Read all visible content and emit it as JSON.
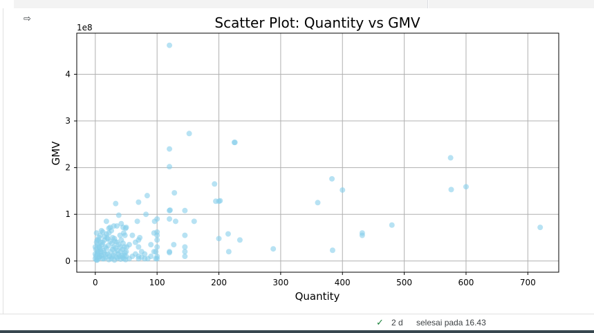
{
  "output_icon": "output-arrow-icon",
  "status": {
    "check_icon": "check-icon",
    "elapsed": "2 d",
    "finished": "selesai pada 16.43"
  },
  "chart_data": {
    "type": "scatter",
    "title": "Scatter Plot: Quantity vs GMV",
    "xlabel": "Quantity",
    "ylabel": "GMV",
    "y_offset_label": "1e8",
    "xlim": [
      -30,
      750
    ],
    "ylim": [
      -0.24,
      4.88
    ],
    "x_ticks": [
      0,
      100,
      200,
      300,
      400,
      500,
      600,
      700
    ],
    "y_ticks": [
      0,
      1,
      2,
      3,
      4
    ],
    "grid": true,
    "point_color": "#87ceeb",
    "series": [
      {
        "points": [
          [
            0,
            0.05
          ],
          [
            1,
            0.1
          ],
          [
            2,
            0.02
          ],
          [
            3,
            0.15
          ],
          [
            4,
            0.2
          ],
          [
            5,
            0.05
          ],
          [
            6,
            0.3
          ],
          [
            7,
            0.1
          ],
          [
            8,
            0.25
          ],
          [
            9,
            0.4
          ],
          [
            10,
            0.12
          ],
          [
            11,
            0.35
          ],
          [
            12,
            0.05
          ],
          [
            13,
            0.22
          ],
          [
            14,
            0.18
          ],
          [
            15,
            0.45
          ],
          [
            16,
            0.3
          ],
          [
            17,
            0.08
          ],
          [
            18,
            0.27
          ],
          [
            19,
            0.5
          ],
          [
            20,
            0.15
          ],
          [
            21,
            0.33
          ],
          [
            22,
            0.6
          ],
          [
            23,
            0.1
          ],
          [
            24,
            0.42
          ],
          [
            25,
            0.2
          ],
          [
            26,
            0.05
          ],
          [
            27,
            0.38
          ],
          [
            28,
            0.25
          ],
          [
            29,
            0.12
          ],
          [
            30,
            0.3
          ],
          [
            31,
            0.48
          ],
          [
            32,
            0.18
          ],
          [
            33,
            0.28
          ],
          [
            34,
            0.08
          ],
          [
            35,
            0.4
          ],
          [
            36,
            0.22
          ],
          [
            37,
            0.15
          ],
          [
            38,
            0.35
          ],
          [
            39,
            0.1
          ],
          [
            40,
            0.3
          ],
          [
            41,
            0.2
          ],
          [
            42,
            0.45
          ],
          [
            43,
            0.12
          ],
          [
            44,
            0.25
          ],
          [
            45,
            0.38
          ],
          [
            46,
            0.05
          ],
          [
            47,
            0.3
          ],
          [
            48,
            0.18
          ],
          [
            49,
            0.7
          ],
          [
            2,
            0.6
          ],
          [
            5,
            0.45
          ],
          [
            8,
            0.55
          ],
          [
            12,
            0.62
          ],
          [
            15,
            0.52
          ],
          [
            20,
            0.48
          ],
          [
            24,
            0.72
          ],
          [
            26,
            0.65
          ],
          [
            33,
            1.23
          ],
          [
            35,
            0.75
          ],
          [
            38,
            0.98
          ],
          [
            42,
            0.8
          ],
          [
            45,
            0.72
          ],
          [
            48,
            0.55
          ],
          [
            50,
            0.72
          ],
          [
            55,
            0.35
          ],
          [
            60,
            0.55
          ],
          [
            65,
            0.4
          ],
          [
            68,
            0.85
          ],
          [
            70,
            1.26
          ],
          [
            72,
            0.5
          ],
          [
            75,
            0.2
          ],
          [
            80,
            0.05
          ],
          [
            82,
            1.0
          ],
          [
            84,
            1.4
          ],
          [
            90,
            0.35
          ],
          [
            95,
            0.6
          ],
          [
            96,
            0.85
          ],
          [
            98,
            0.2
          ],
          [
            100,
            0.45
          ],
          [
            100,
            0.62
          ],
          [
            100,
            0.9
          ],
          [
            100,
            0.05
          ],
          [
            100,
            0.3
          ],
          [
            100,
            0.55
          ],
          [
            120,
            0.2
          ],
          [
            120,
            0.18
          ],
          [
            120,
            0.9
          ],
          [
            120,
            1.08
          ],
          [
            121,
            1.09
          ],
          [
            120,
            2.02
          ],
          [
            120,
            2.4
          ],
          [
            120,
            4.62
          ],
          [
            127,
            0.35
          ],
          [
            128,
            1.46
          ],
          [
            130,
            0.85
          ],
          [
            145,
            0.1
          ],
          [
            145,
            0.2
          ],
          [
            145,
            0.3
          ],
          [
            145,
            0.55
          ],
          [
            145,
            1.08
          ],
          [
            152,
            2.73
          ],
          [
            160,
            0.85
          ],
          [
            193,
            1.65
          ],
          [
            195,
            1.28
          ],
          [
            200,
            0.48
          ],
          [
            200,
            1.28
          ],
          [
            202,
            1.29
          ],
          [
            215,
            0.58
          ],
          [
            216,
            0.2
          ],
          [
            225,
            2.54
          ],
          [
            226,
            2.54
          ],
          [
            234,
            0.45
          ],
          [
            288,
            0.26
          ],
          [
            360,
            1.25
          ],
          [
            383,
            1.76
          ],
          [
            384,
            0.23
          ],
          [
            400,
            1.52
          ],
          [
            432,
            0.55
          ],
          [
            432,
            0.6
          ],
          [
            480,
            0.77
          ],
          [
            575,
            2.21
          ],
          [
            576,
            1.53
          ],
          [
            600,
            1.59
          ],
          [
            720,
            0.72
          ],
          [
            3,
            0.02
          ],
          [
            6,
            0.08
          ],
          [
            9,
            0.12
          ],
          [
            14,
            0.05
          ],
          [
            17,
            0.14
          ],
          [
            22,
            0.03
          ],
          [
            27,
            0.09
          ],
          [
            31,
            0.02
          ],
          [
            36,
            0.06
          ],
          [
            41,
            0.04
          ],
          [
            44,
            0.08
          ],
          [
            47,
            0.12
          ],
          [
            49,
            0.03
          ],
          [
            50,
            0.2
          ],
          [
            50,
            0.1
          ],
          [
            51,
            0.3
          ],
          [
            55,
            0.05
          ],
          [
            60,
            0.1
          ],
          [
            65,
            0.15
          ],
          [
            70,
            0.05
          ],
          [
            70,
            0.3
          ],
          [
            70,
            0.1
          ],
          [
            70,
            0.45
          ],
          [
            75,
            0.08
          ],
          [
            80,
            0.15
          ],
          [
            85,
            0.05
          ],
          [
            90,
            0.1
          ],
          [
            95,
            0.2
          ],
          [
            98,
            0.05
          ],
          [
            100,
            0.1
          ],
          [
            10,
            0.65
          ],
          [
            18,
            0.58
          ],
          [
            28,
            0.5
          ],
          [
            32,
            0.42
          ],
          [
            40,
            0.55
          ],
          [
            46,
            0.6
          ],
          [
            30,
            0.75
          ],
          [
            22,
            0.7
          ],
          [
            18,
            0.85
          ],
          [
            12,
            0.4
          ],
          [
            6,
            0.5
          ],
          [
            4,
            0.35
          ],
          [
            3,
            0.45
          ],
          [
            1,
            0.25
          ],
          [
            0,
            0.15
          ],
          [
            0,
            0.3
          ],
          [
            2,
            0.4
          ],
          [
            5,
            0.2
          ],
          [
            7,
            0.3
          ],
          [
            9,
            0.2
          ]
        ]
      }
    ]
  }
}
